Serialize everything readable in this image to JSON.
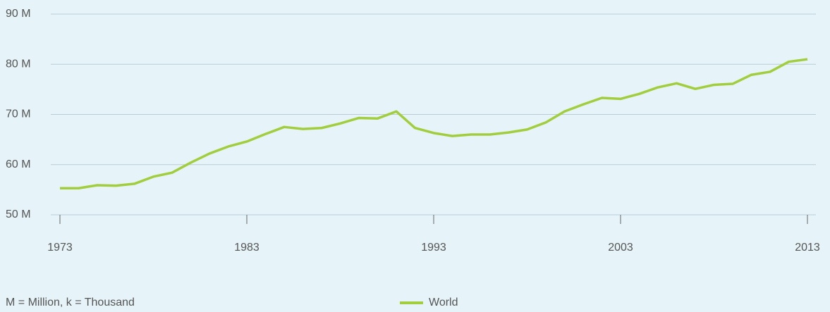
{
  "chart_data": {
    "type": "line",
    "note": "M = Million, k = Thousand",
    "x": [
      1973,
      1974,
      1975,
      1976,
      1977,
      1978,
      1979,
      1980,
      1981,
      1982,
      1983,
      1984,
      1985,
      1986,
      1987,
      1988,
      1989,
      1990,
      1991,
      1992,
      1993,
      1994,
      1995,
      1996,
      1997,
      1998,
      1999,
      2000,
      2001,
      2002,
      2003,
      2004,
      2005,
      2006,
      2007,
      2008,
      2009,
      2010,
      2011,
      2012,
      2013
    ],
    "series": [
      {
        "name": "World",
        "color": "#a2cd3c",
        "values": [
          55.3,
          55.3,
          55.9,
          55.8,
          56.2,
          57.6,
          58.4,
          60.4,
          62.2,
          63.6,
          64.6,
          66.1,
          67.5,
          67.1,
          67.3,
          68.2,
          69.3,
          69.2,
          70.6,
          67.3,
          66.3,
          65.7,
          66.0,
          66.0,
          66.4,
          67.0,
          68.4,
          70.6,
          72.0,
          73.3,
          73.1,
          74.1,
          75.4,
          76.2,
          75.1,
          75.9,
          76.1,
          77.9,
          78.5,
          80.5,
          81.0
        ]
      }
    ],
    "xlim": [
      1973,
      2013
    ],
    "xticks": [
      1973,
      1983,
      1993,
      2003,
      2013
    ],
    "ylim": [
      50,
      90
    ],
    "yticks": [
      {
        "value": 50,
        "label": "50 M"
      },
      {
        "value": 60,
        "label": "60 M"
      },
      {
        "value": 70,
        "label": "70 M"
      },
      {
        "value": 80,
        "label": "80 M"
      },
      {
        "value": 90,
        "label": "90 M"
      }
    ],
    "grid": true
  }
}
